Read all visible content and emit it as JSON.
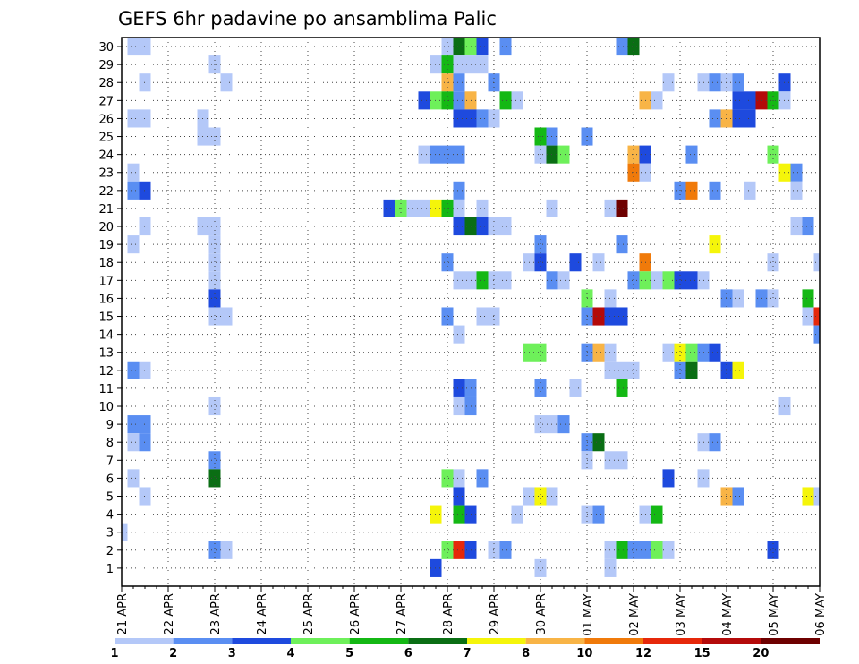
{
  "chart_data": {
    "type": "heatmap",
    "title": "GEFS 6hr padavine po ansamblima Palic",
    "xlabel": "",
    "ylabel": "",
    "x_ticks": [
      "21 APR",
      "22 APR",
      "23 APR",
      "24 APR",
      "25 APR",
      "26 APR",
      "27 APR",
      "28 APR",
      "29 APR",
      "30 APR",
      "01 MAY",
      "02 MAY",
      "03 MAY",
      "04 MAY",
      "05 MAY",
      "06 MAY"
    ],
    "x_unit": "6h steps",
    "x_range_steps": [
      0,
      60
    ],
    "y_ticks": [
      1,
      2,
      3,
      4,
      5,
      6,
      7,
      8,
      9,
      10,
      11,
      12,
      13,
      14,
      15,
      16,
      17,
      18,
      19,
      20,
      21,
      22,
      23,
      24,
      25,
      26,
      27,
      28,
      29,
      30
    ],
    "y_range": [
      0,
      30.5
    ],
    "grid": true,
    "levels": [
      {
        "min": 1,
        "max": 2,
        "color": "#b4c8f8"
      },
      {
        "min": 2,
        "max": 3,
        "color": "#5a8ef2"
      },
      {
        "min": 3,
        "max": 4,
        "color": "#1e4ade"
      },
      {
        "min": 4,
        "max": 5,
        "color": "#6ef05a"
      },
      {
        "min": 5,
        "max": 6,
        "color": "#14b814"
      },
      {
        "min": 6,
        "max": 7,
        "color": "#0a6e14"
      },
      {
        "min": 7,
        "max": 8,
        "color": "#f5f50a"
      },
      {
        "min": 8,
        "max": 10,
        "color": "#f8b446"
      },
      {
        "min": 10,
        "max": 12,
        "color": "#f07a0a"
      },
      {
        "min": 12,
        "max": 15,
        "color": "#e6280a"
      },
      {
        "min": 15,
        "max": 20,
        "color": "#b40a0a"
      },
      {
        "min": 20,
        "max": null,
        "color": "#6e0000"
      }
    ],
    "colorbar_labels": [
      "1",
      "2",
      "3",
      "4",
      "5",
      "6",
      "7",
      "8",
      "10",
      "12",
      "15",
      "20"
    ],
    "cells_note": "each cell: [member, 6h-step index from 21 APR 00Z, precipitation mm]",
    "cells": [
      [
        30,
        1,
        1.5
      ],
      [
        30,
        2,
        1.5
      ],
      [
        30,
        28,
        1.5
      ],
      [
        30,
        29,
        6.5
      ],
      [
        30,
        30,
        4.5
      ],
      [
        30,
        31,
        3.5
      ],
      [
        30,
        33,
        2.5
      ],
      [
        30,
        43,
        2.5
      ],
      [
        30,
        44,
        6.5
      ],
      [
        29,
        8,
        1.5
      ],
      [
        29,
        27,
        1.5
      ],
      [
        29,
        28,
        5.5
      ],
      [
        29,
        29,
        1.5
      ],
      [
        29,
        30,
        1.5
      ],
      [
        29,
        31,
        1.5
      ],
      [
        28,
        2,
        1.5
      ],
      [
        28,
        9,
        1.5
      ],
      [
        28,
        28,
        8.5
      ],
      [
        28,
        29,
        2.5
      ],
      [
        28,
        32,
        2.5
      ],
      [
        28,
        47,
        1.5
      ],
      [
        28,
        50,
        1.5
      ],
      [
        28,
        51,
        2.5
      ],
      [
        28,
        52,
        1.5
      ],
      [
        28,
        53,
        2.5
      ],
      [
        28,
        57,
        3.5
      ],
      [
        27,
        26,
        3.5
      ],
      [
        27,
        27,
        4.5
      ],
      [
        27,
        28,
        5.5
      ],
      [
        27,
        29,
        2.5
      ],
      [
        27,
        30,
        8.5
      ],
      [
        27,
        33,
        5.5
      ],
      [
        27,
        34,
        1.5
      ],
      [
        27,
        45,
        8.5
      ],
      [
        27,
        46,
        1.5
      ],
      [
        27,
        53,
        3.5
      ],
      [
        27,
        54,
        3.5
      ],
      [
        27,
        55,
        17.5
      ],
      [
        27,
        56,
        5.5
      ],
      [
        27,
        57,
        1.5
      ],
      [
        26,
        1,
        1.5
      ],
      [
        26,
        2,
        1.5
      ],
      [
        26,
        7,
        1.5
      ],
      [
        26,
        29,
        3.5
      ],
      [
        26,
        30,
        3.5
      ],
      [
        26,
        31,
        2.5
      ],
      [
        26,
        32,
        1.5
      ],
      [
        26,
        51,
        2.5
      ],
      [
        26,
        52,
        8.5
      ],
      [
        26,
        53,
        3.5
      ],
      [
        26,
        54,
        3.5
      ],
      [
        25,
        7,
        1.5
      ],
      [
        25,
        8,
        1.5
      ],
      [
        25,
        36,
        5.5
      ],
      [
        25,
        37,
        2.5
      ],
      [
        25,
        40,
        2.5
      ],
      [
        24,
        26,
        1.5
      ],
      [
        24,
        27,
        2.5
      ],
      [
        24,
        28,
        2.5
      ],
      [
        24,
        29,
        2.5
      ],
      [
        24,
        36,
        1.5
      ],
      [
        24,
        37,
        6.5
      ],
      [
        24,
        38,
        4.5
      ],
      [
        24,
        44,
        8.5
      ],
      [
        24,
        45,
        3.5
      ],
      [
        24,
        49,
        2.5
      ],
      [
        24,
        56,
        4.5
      ],
      [
        23,
        1,
        1.5
      ],
      [
        23,
        44,
        11
      ],
      [
        23,
        45,
        1.5
      ],
      [
        23,
        57,
        7.5
      ],
      [
        23,
        58,
        2.5
      ],
      [
        22,
        1,
        2.5
      ],
      [
        22,
        2,
        3.5
      ],
      [
        22,
        29,
        2.5
      ],
      [
        22,
        48,
        2.5
      ],
      [
        22,
        49,
        11
      ],
      [
        22,
        51,
        2.5
      ],
      [
        22,
        54,
        1.5
      ],
      [
        22,
        58,
        1.5
      ],
      [
        21,
        23,
        3.5
      ],
      [
        21,
        24,
        4.5
      ],
      [
        21,
        25,
        1.5
      ],
      [
        21,
        26,
        1.5
      ],
      [
        21,
        27,
        7.5
      ],
      [
        21,
        28,
        5.5
      ],
      [
        21,
        29,
        1.5
      ],
      [
        21,
        31,
        1.5
      ],
      [
        21,
        37,
        1.5
      ],
      [
        21,
        42,
        1.5
      ],
      [
        21,
        43,
        22
      ],
      [
        20,
        2,
        1.5
      ],
      [
        20,
        7,
        1.5
      ],
      [
        20,
        8,
        1.5
      ],
      [
        20,
        29,
        3.5
      ],
      [
        20,
        30,
        6.5
      ],
      [
        20,
        31,
        3.5
      ],
      [
        20,
        32,
        1.5
      ],
      [
        20,
        33,
        1.5
      ],
      [
        20,
        58,
        1.5
      ],
      [
        20,
        59,
        2.5
      ],
      [
        19,
        1,
        1.5
      ],
      [
        19,
        8,
        1.5
      ],
      [
        19,
        36,
        2.5
      ],
      [
        19,
        43,
        2.5
      ],
      [
        19,
        51,
        7.5
      ],
      [
        18,
        8,
        1.5
      ],
      [
        18,
        28,
        2.5
      ],
      [
        18,
        35,
        1.5
      ],
      [
        18,
        36,
        3.5
      ],
      [
        18,
        39,
        3.5
      ],
      [
        18,
        41,
        1.5
      ],
      [
        18,
        45,
        11
      ],
      [
        18,
        56,
        1.5
      ],
      [
        18,
        60,
        1.5
      ],
      [
        17,
        8,
        1.5
      ],
      [
        17,
        29,
        1.5
      ],
      [
        17,
        30,
        1.5
      ],
      [
        17,
        31,
        5.5
      ],
      [
        17,
        32,
        1.5
      ],
      [
        17,
        33,
        1.5
      ],
      [
        17,
        37,
        2.5
      ],
      [
        17,
        38,
        1.5
      ],
      [
        17,
        44,
        2.5
      ],
      [
        17,
        45,
        4.5
      ],
      [
        17,
        46,
        1.5
      ],
      [
        17,
        47,
        4.5
      ],
      [
        17,
        48,
        3.5
      ],
      [
        17,
        49,
        3.5
      ],
      [
        17,
        50,
        1.5
      ],
      [
        16,
        8,
        3.5
      ],
      [
        16,
        40,
        4.5
      ],
      [
        16,
        42,
        1.5
      ],
      [
        16,
        52,
        2.5
      ],
      [
        16,
        53,
        1.5
      ],
      [
        16,
        55,
        2.5
      ],
      [
        16,
        56,
        1.5
      ],
      [
        16,
        59,
        5.5
      ],
      [
        15,
        8,
        1.5
      ],
      [
        15,
        9,
        1.5
      ],
      [
        15,
        28,
        2.5
      ],
      [
        15,
        31,
        1.5
      ],
      [
        15,
        32,
        1.5
      ],
      [
        15,
        40,
        2.5
      ],
      [
        15,
        41,
        17.5
      ],
      [
        15,
        42,
        3.5
      ],
      [
        15,
        43,
        3.5
      ],
      [
        15,
        59,
        1.5
      ],
      [
        15,
        60,
        13.5
      ],
      [
        14,
        29,
        1.5
      ],
      [
        14,
        60,
        2.5
      ],
      [
        13,
        35,
        4.5
      ],
      [
        13,
        36,
        4.5
      ],
      [
        13,
        40,
        2.5
      ],
      [
        13,
        41,
        8.5
      ],
      [
        13,
        42,
        1.5
      ],
      [
        13,
        47,
        1.5
      ],
      [
        13,
        48,
        7.5
      ],
      [
        13,
        49,
        4.5
      ],
      [
        13,
        50,
        2.5
      ],
      [
        13,
        51,
        3.5
      ],
      [
        12,
        1,
        2.5
      ],
      [
        12,
        2,
        1.5
      ],
      [
        12,
        42,
        1.5
      ],
      [
        12,
        43,
        1.5
      ],
      [
        12,
        44,
        1.5
      ],
      [
        12,
        48,
        2.5
      ],
      [
        12,
        49,
        6.5
      ],
      [
        12,
        52,
        3.5
      ],
      [
        12,
        53,
        7.5
      ],
      [
        11,
        29,
        3.5
      ],
      [
        11,
        30,
        2.5
      ],
      [
        11,
        36,
        2.5
      ],
      [
        11,
        39,
        1.5
      ],
      [
        11,
        43,
        5.5
      ],
      [
        10,
        8,
        1.5
      ],
      [
        10,
        29,
        1.5
      ],
      [
        10,
        30,
        2.5
      ],
      [
        10,
        57,
        1.5
      ],
      [
        9,
        1,
        2.5
      ],
      [
        9,
        2,
        2.5
      ],
      [
        9,
        36,
        1.5
      ],
      [
        9,
        37,
        1.5
      ],
      [
        9,
        38,
        2.5
      ],
      [
        8,
        1,
        1.5
      ],
      [
        8,
        2,
        2.5
      ],
      [
        8,
        40,
        2.5
      ],
      [
        8,
        41,
        6.5
      ],
      [
        8,
        50,
        1.5
      ],
      [
        8,
        51,
        2.5
      ],
      [
        7,
        8,
        2.5
      ],
      [
        7,
        40,
        1.5
      ],
      [
        7,
        42,
        1.5
      ],
      [
        7,
        43,
        1.5
      ],
      [
        6,
        1,
        1.5
      ],
      [
        6,
        8,
        6.5
      ],
      [
        6,
        28,
        4.5
      ],
      [
        6,
        29,
        1.5
      ],
      [
        6,
        31,
        2.5
      ],
      [
        6,
        47,
        3.5
      ],
      [
        6,
        50,
        1.5
      ],
      [
        5,
        2,
        1.5
      ],
      [
        5,
        29,
        3.5
      ],
      [
        5,
        35,
        1.5
      ],
      [
        5,
        36,
        7.5
      ],
      [
        5,
        37,
        1.5
      ],
      [
        5,
        52,
        8.5
      ],
      [
        5,
        53,
        2.5
      ],
      [
        5,
        59,
        7.5
      ],
      [
        5,
        60,
        1.5
      ],
      [
        4,
        27,
        7.5
      ],
      [
        4,
        29,
        5.5
      ],
      [
        4,
        30,
        3.5
      ],
      [
        4,
        34,
        1.5
      ],
      [
        4,
        40,
        1.5
      ],
      [
        4,
        41,
        2.5
      ],
      [
        4,
        45,
        1.5
      ],
      [
        4,
        46,
        5.5
      ],
      [
        3,
        0,
        1.5
      ],
      [
        2,
        8,
        2.5
      ],
      [
        2,
        9,
        1.5
      ],
      [
        2,
        28,
        4.5
      ],
      [
        2,
        29,
        13.5
      ],
      [
        2,
        30,
        3.5
      ],
      [
        2,
        32,
        1.5
      ],
      [
        2,
        33,
        2.5
      ],
      [
        2,
        42,
        1.5
      ],
      [
        2,
        43,
        5.5
      ],
      [
        2,
        44,
        2.5
      ],
      [
        2,
        45,
        2.5
      ],
      [
        2,
        46,
        4.5
      ],
      [
        2,
        47,
        1.5
      ],
      [
        2,
        56,
        3.5
      ],
      [
        1,
        27,
        3.5
      ],
      [
        1,
        36,
        1.5
      ],
      [
        1,
        42,
        1.5
      ]
    ]
  }
}
